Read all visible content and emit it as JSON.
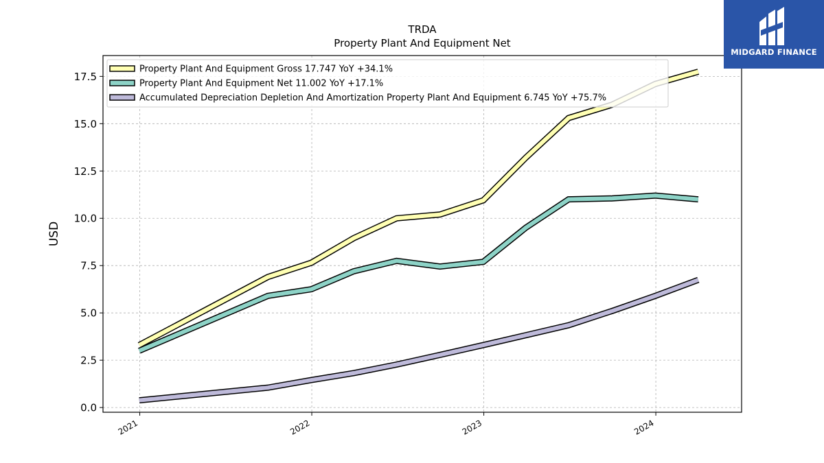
{
  "chart_data": {
    "type": "line",
    "title": "TRDA",
    "subtitle": "Property Plant And Equipment Net",
    "ylabel": "USD",
    "xlabel": "",
    "ylim": [
      -0.25,
      18.6
    ],
    "xlim": [
      "2020-10-15",
      "2024-07-01"
    ],
    "x_ticks": [
      "2021",
      "2022",
      "2023",
      "2024"
    ],
    "y_ticks": [
      "0.0",
      "2.5",
      "5.0",
      "7.5",
      "10.0",
      "12.5",
      "15.0",
      "17.5"
    ],
    "grid": true,
    "legend_position": "top-left",
    "x": [
      "2020-12-31",
      "2021-09-30",
      "2021-12-31",
      "2022-03-31",
      "2022-06-30",
      "2022-09-30",
      "2022-12-31",
      "2023-03-31",
      "2023-06-30",
      "2023-09-30",
      "2023-12-31",
      "2024-03-31"
    ],
    "series": [
      {
        "name": "Property Plant And Equipment Gross",
        "legend": "Property Plant And Equipment Gross  17.747 YoY +34.1%",
        "color": "#ffffb3",
        "values": [
          3.3,
          6.9,
          7.65,
          8.95,
          10.0,
          10.2,
          10.95,
          13.2,
          15.3,
          16.0,
          17.1,
          17.747
        ]
      },
      {
        "name": "Property Plant And Equipment Net",
        "legend": "Property Plant And Equipment Net  11.002 YoY +17.1%",
        "color": "#8dd3c7",
        "values": [
          3.0,
          5.9,
          6.25,
          7.2,
          7.75,
          7.45,
          7.7,
          9.5,
          11.0,
          11.05,
          11.2,
          11.002
        ]
      },
      {
        "name": "Accumulated Depreciation Depletion And Amortization Property Plant And Equipment",
        "legend": "Accumulated Depreciation Depletion And Amortization Property Plant And Equipment  6.745 YoY +75.7%",
        "color": "#bebada",
        "values": [
          0.38,
          1.05,
          1.45,
          1.82,
          2.27,
          2.78,
          3.3,
          3.82,
          4.35,
          5.1,
          5.9,
          6.745
        ]
      }
    ]
  },
  "logo": {
    "text": "MIDGARD FINANCE",
    "bg_color": "#2a55a8"
  }
}
